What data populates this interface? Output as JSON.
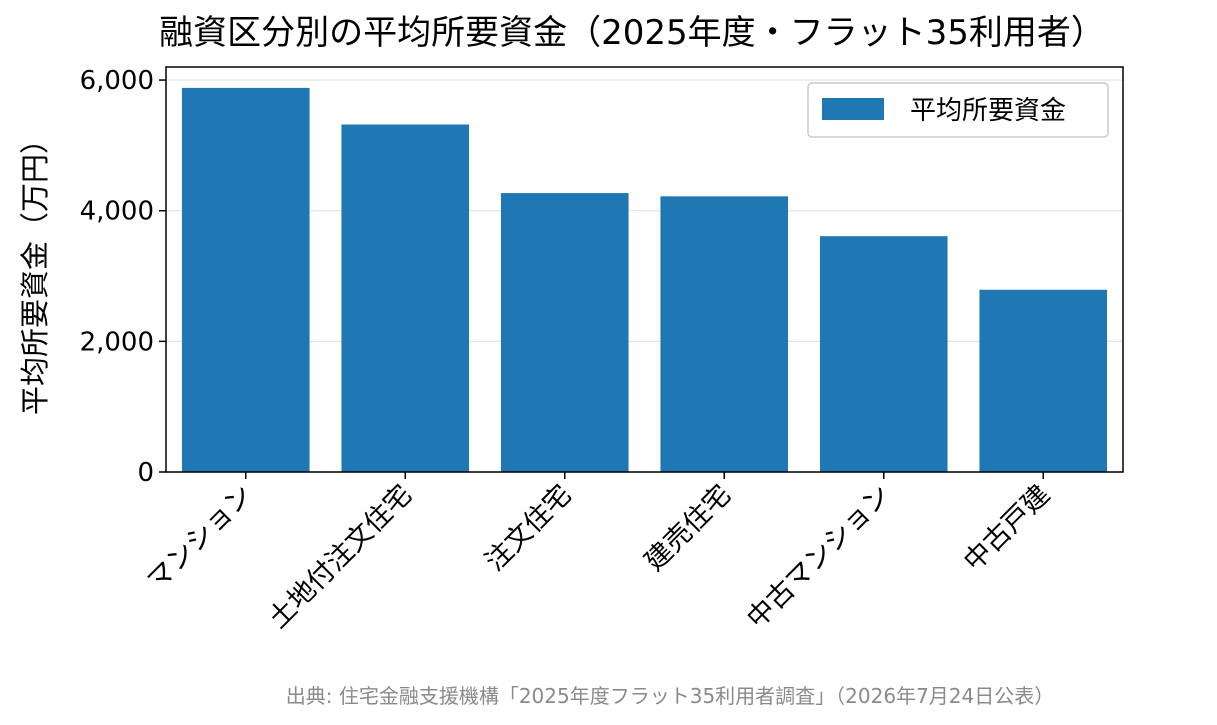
{
  "chart_data": {
    "type": "bar",
    "title": "融資区分別の平均所要資金（2025年度・フラット35利用者）",
    "xlabel": "",
    "ylabel": "平均所要資金（万円）",
    "categories": [
      "マンション",
      "土地付注文住宅",
      "注文住宅",
      "建売住宅",
      "中古マンション",
      "中古戸建"
    ],
    "series": [
      {
        "name": "平均所要資金",
        "values": [
          5880,
          5320,
          4270,
          4220,
          3610,
          2790
        ],
        "color": "#1f77b4"
      }
    ],
    "ylim": [
      0,
      6200
    ],
    "yticks": [
      0,
      2000,
      4000,
      6000
    ],
    "ytick_labels": [
      "0",
      "2,000",
      "4,000",
      "6,000"
    ],
    "grid": "y",
    "legend_position": "top-right",
    "source_note": "出典: 住宅金融支援機構「2025年度フラット35利用者調査」（2026年7月24日公表）"
  }
}
